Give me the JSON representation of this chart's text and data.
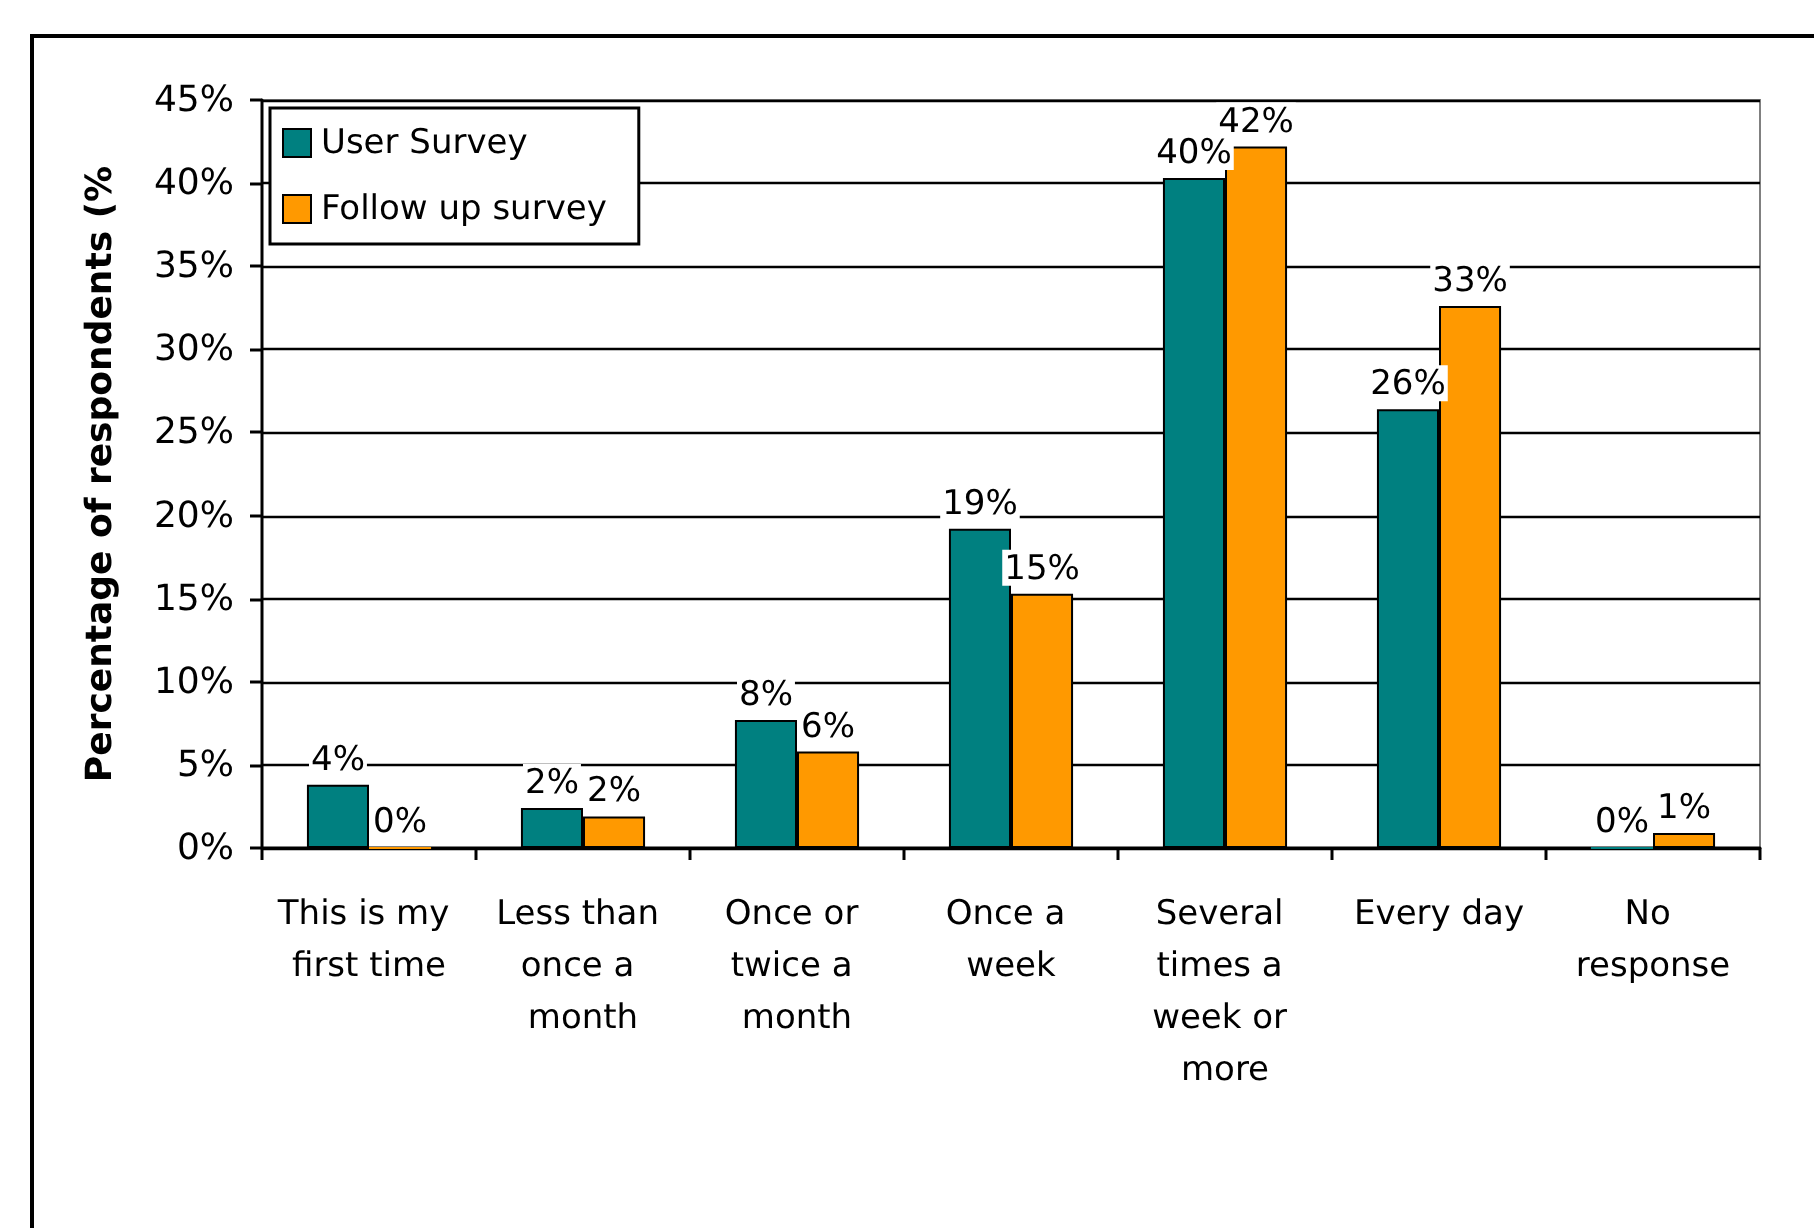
{
  "chart_data": {
    "type": "bar",
    "ylabel": "Percentage of respondents (%",
    "categories": [
      "This is my first time",
      "Less than once a month",
      "Once or twice a month",
      "Once a week",
      "Several times a week or more",
      "Every day",
      "No response"
    ],
    "series": [
      {
        "name": "User Survey",
        "color": "#008080",
        "values": [
          3.8,
          2.4,
          7.7,
          19.2,
          40.3,
          26.4,
          0
        ],
        "value_labels": [
          "4%",
          "2%",
          "8%",
          "19%",
          "40%",
          "26%",
          "0%"
        ]
      },
      {
        "name": "Follow up survey",
        "color": "#ff9900",
        "values": [
          0,
          1.9,
          5.8,
          15.3,
          42.2,
          32.6,
          0.9
        ],
        "value_labels": [
          "0%",
          "2%",
          "6%",
          "15%",
          "42%",
          "33%",
          "1%"
        ]
      }
    ],
    "ylim": [
      0,
      45
    ],
    "yticks": [
      {
        "value": 0,
        "label": "0%"
      },
      {
        "value": 5,
        "label": "5%"
      },
      {
        "value": 10,
        "label": "10%"
      },
      {
        "value": 15,
        "label": "15%"
      },
      {
        "value": 20,
        "label": "20%"
      },
      {
        "value": 25,
        "label": "25%"
      },
      {
        "value": 30,
        "label": "30%"
      },
      {
        "value": 35,
        "label": "35%"
      },
      {
        "value": 40,
        "label": "40%"
      },
      {
        "value": 45,
        "label": "45%"
      }
    ],
    "grid": "y",
    "legend": "top left"
  }
}
